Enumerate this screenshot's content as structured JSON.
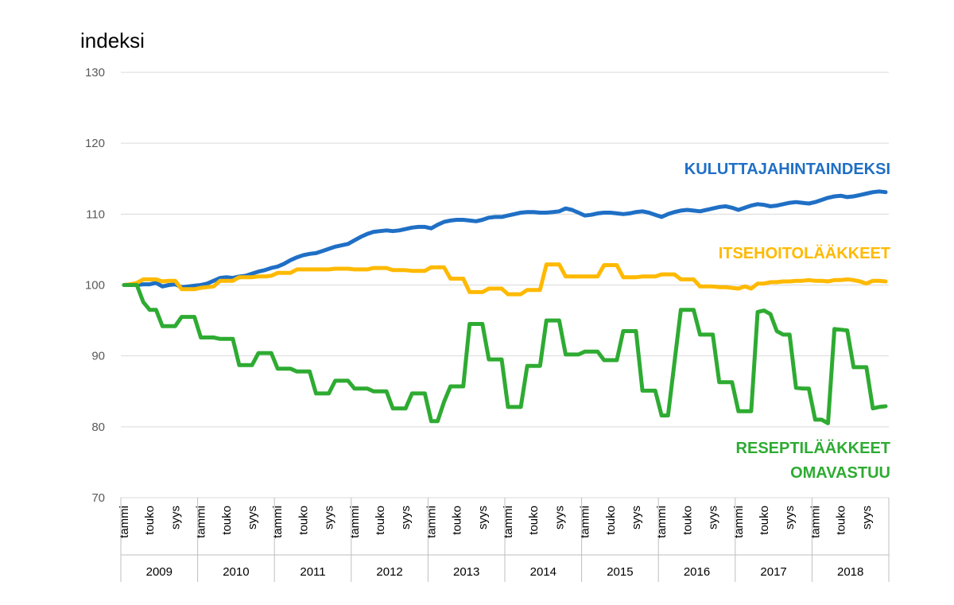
{
  "chart_data": {
    "type": "line",
    "ylabel": "indeksi",
    "ylim": [
      70,
      130
    ],
    "yticks": [
      70,
      80,
      90,
      100,
      110,
      120,
      130
    ],
    "grid": true,
    "x_axis": {
      "years": [
        "2009",
        "2010",
        "2011",
        "2012",
        "2013",
        "2014",
        "2015",
        "2016",
        "2017",
        "2018"
      ],
      "month_labels": [
        {
          "month": 1,
          "label": "tammi"
        },
        {
          "month": 5,
          "label": "touko"
        },
        {
          "month": 9,
          "label": "syys"
        }
      ],
      "start": "2009-01",
      "end": "2018-12"
    },
    "series": [
      {
        "name": "KULUTTAJAHINTAINDEKSI",
        "color": "#1F6FC5",
        "values": [
          100,
          100,
          100,
          100.1,
          100.1,
          100.3,
          99.8,
          100,
          100.1,
          99.7,
          99.8,
          99.9,
          100,
          100.2,
          100.6,
          101,
          101.1,
          101,
          101.2,
          101.3,
          101.6,
          101.9,
          102.1,
          102.4,
          102.6,
          103,
          103.5,
          103.9,
          104.2,
          104.4,
          104.5,
          104.8,
          105.1,
          105.4,
          105.6,
          105.8,
          106.3,
          106.8,
          107.2,
          107.5,
          107.6,
          107.7,
          107.6,
          107.7,
          107.9,
          108.1,
          108.2,
          108.2,
          108,
          108.5,
          108.9,
          109.1,
          109.2,
          109.2,
          109.1,
          109,
          109.2,
          109.5,
          109.6,
          109.6,
          109.8,
          110,
          110.2,
          110.3,
          110.3,
          110.2,
          110.2,
          110.3,
          110.4,
          110.8,
          110.6,
          110.2,
          109.8,
          109.9,
          110.1,
          110.2,
          110.2,
          110.1,
          110,
          110.1,
          110.3,
          110.4,
          110.2,
          109.9,
          109.6,
          110,
          110.3,
          110.5,
          110.6,
          110.5,
          110.4,
          110.6,
          110.8,
          111,
          111.1,
          110.9,
          110.6,
          110.9,
          111.2,
          111.4,
          111.3,
          111.1,
          111.2,
          111.4,
          111.6,
          111.7,
          111.6,
          111.5,
          111.7,
          112,
          112.3,
          112.5,
          112.6,
          112.4,
          112.5,
          112.7,
          112.9,
          113.1,
          113.2,
          113.1
        ]
      },
      {
        "name": "ITSEHOITOLÄÄKKEET",
        "color": "#FFB900",
        "values": [
          100,
          100.1,
          100.3,
          100.8,
          100.8,
          100.8,
          100.5,
          100.6,
          100.6,
          99.4,
          99.4,
          99.4,
          99.6,
          99.7,
          99.8,
          100.6,
          100.6,
          100.6,
          101.1,
          101.1,
          101.1,
          101.2,
          101.2,
          101.3,
          101.7,
          101.7,
          101.7,
          102.2,
          102.2,
          102.2,
          102.2,
          102.2,
          102.2,
          102.3,
          102.3,
          102.3,
          102.2,
          102.2,
          102.2,
          102.4,
          102.4,
          102.4,
          102.1,
          102.1,
          102.1,
          102,
          102,
          102,
          102.5,
          102.5,
          102.5,
          100.9,
          100.9,
          100.9,
          99,
          99,
          99,
          99.5,
          99.5,
          99.5,
          98.7,
          98.7,
          98.7,
          99.3,
          99.3,
          99.3,
          102.9,
          102.9,
          102.9,
          101.2,
          101.2,
          101.2,
          101.2,
          101.2,
          101.2,
          102.8,
          102.8,
          102.8,
          101.1,
          101.1,
          101.1,
          101.2,
          101.2,
          101.2,
          101.5,
          101.5,
          101.5,
          100.8,
          100.8,
          100.8,
          99.8,
          99.8,
          99.8,
          99.7,
          99.7,
          99.6,
          99.5,
          99.8,
          99.5,
          100.2,
          100.2,
          100.4,
          100.4,
          100.5,
          100.5,
          100.6,
          100.6,
          100.7,
          100.6,
          100.6,
          100.5,
          100.7,
          100.7,
          100.8,
          100.7,
          100.5,
          100.2,
          100.6,
          100.6,
          100.5
        ]
      },
      {
        "name": "RESEPTILÄÄKKEET OMAVASTUU",
        "color": "#2EAB32",
        "values": [
          100,
          100,
          100,
          97.6,
          96.5,
          96.5,
          94.2,
          94.2,
          94.2,
          95.5,
          95.5,
          95.5,
          92.6,
          92.6,
          92.6,
          92.4,
          92.4,
          92.4,
          88.7,
          88.7,
          88.7,
          90.4,
          90.4,
          90.4,
          88.2,
          88.2,
          88.2,
          87.8,
          87.8,
          87.8,
          84.7,
          84.7,
          84.7,
          86.5,
          86.5,
          86.5,
          85.4,
          85.4,
          85.4,
          85,
          85,
          85,
          82.6,
          82.6,
          82.6,
          84.7,
          84.7,
          84.7,
          80.8,
          80.8,
          83.5,
          85.7,
          85.7,
          85.7,
          94.5,
          94.5,
          94.5,
          89.5,
          89.5,
          89.5,
          82.8,
          82.8,
          82.8,
          88.6,
          88.6,
          88.6,
          95,
          95,
          95,
          90.2,
          90.2,
          90.2,
          90.6,
          90.6,
          90.6,
          89.4,
          89.4,
          89.4,
          93.5,
          93.5,
          93.5,
          85.1,
          85.1,
          85.1,
          81.6,
          81.6,
          89,
          96.5,
          96.5,
          96.5,
          93,
          93,
          93,
          86.3,
          86.3,
          86.3,
          82.2,
          82.2,
          82.2,
          96.2,
          96.4,
          95.9,
          93.5,
          93,
          93,
          85.5,
          85.4,
          85.4,
          81,
          81,
          80.5,
          93.8,
          93.7,
          93.6,
          88.4,
          88.4,
          88.4,
          82.6,
          82.8,
          82.9
        ]
      }
    ],
    "series_labels": [
      {
        "lines": [
          "KULUTTAJAHINTAINDEKSI"
        ]
      },
      {
        "lines": [
          "ITSEHOITOLÄÄKKEET"
        ]
      },
      {
        "lines": [
          "RESEPTILÄÄKKEET",
          "OMAVASTUU"
        ]
      }
    ]
  }
}
